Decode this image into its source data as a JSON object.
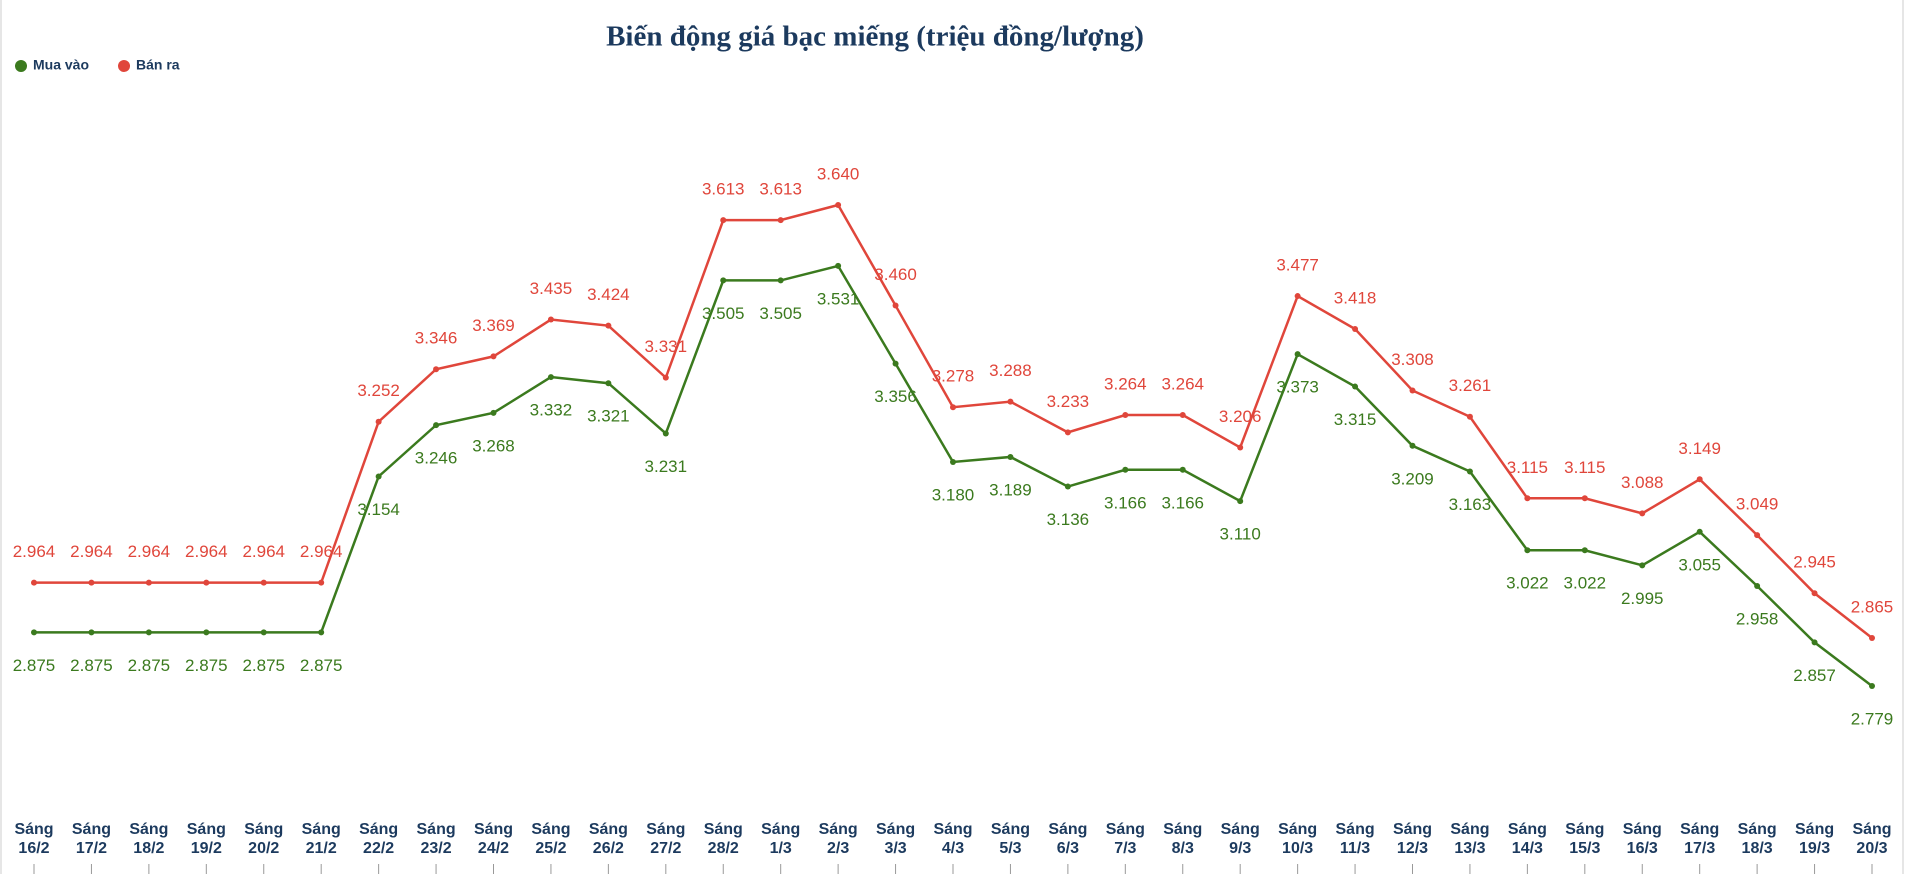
{
  "chart_data": {
    "type": "line",
    "title": "Biến động giá bạc miếng (triệu đồng/lượng)",
    "categories": [
      "Sáng 16/2",
      "Sáng 17/2",
      "Sáng 18/2",
      "Sáng 19/2",
      "Sáng 20/2",
      "Sáng 21/2",
      "Sáng 22/2",
      "Sáng 23/2",
      "Sáng 24/2",
      "Sáng 25/2",
      "Sáng 26/2",
      "Sáng 27/2",
      "Sáng 28/2",
      "Sáng 1/3",
      "Sáng 2/3",
      "Sáng 3/3",
      "Sáng 4/3",
      "Sáng 5/3",
      "Sáng 6/3",
      "Sáng 7/3",
      "Sáng 8/3",
      "Sáng 9/3",
      "Sáng 10/3",
      "Sáng 11/3",
      "Sáng 12/3",
      "Sáng 13/3",
      "Sáng 14/3",
      "Sáng 15/3",
      "Sáng 16/3",
      "Sáng 17/3",
      "Sáng 18/3",
      "Sáng 19/3",
      "Sáng 20/3"
    ],
    "series": [
      {
        "name": "Mua vào",
        "color": "#3b7a1e",
        "values": [
          2.875,
          2.875,
          2.875,
          2.875,
          2.875,
          2.875,
          3.154,
          3.246,
          3.268,
          3.332,
          3.321,
          3.231,
          3.505,
          3.505,
          3.531,
          3.356,
          3.18,
          3.189,
          3.136,
          3.166,
          3.166,
          3.11,
          3.373,
          3.315,
          3.209,
          3.163,
          3.022,
          3.022,
          2.995,
          3.055,
          2.958,
          2.857,
          2.779
        ],
        "value_labels": [
          "2.875",
          "2.875",
          "2.875",
          "2.875",
          "2.875",
          "2.875",
          "3.154",
          "3.246",
          "3.268",
          "3.332",
          "3.321",
          "3.231",
          "3.505",
          "3.505",
          "3.531",
          "3.356",
          "3.180",
          "3.189",
          "3.136",
          "3.166",
          "3.166",
          "3.110",
          "3.373",
          "3.315",
          "3.209",
          "3.163",
          "3.022",
          "3.022",
          "2.995",
          "3.055",
          "2.958",
          "2.857",
          "2.779"
        ]
      },
      {
        "name": "Bán ra",
        "color": "#e0463b",
        "values": [
          2.964,
          2.964,
          2.964,
          2.964,
          2.964,
          2.964,
          3.252,
          3.346,
          3.369,
          3.435,
          3.424,
          3.331,
          3.613,
          3.613,
          3.64,
          3.46,
          3.278,
          3.288,
          3.233,
          3.264,
          3.264,
          3.206,
          3.477,
          3.418,
          3.308,
          3.261,
          3.115,
          3.115,
          3.088,
          3.149,
          3.049,
          2.945,
          2.865
        ],
        "value_labels": [
          "2.964",
          "2.964",
          "2.964",
          "2.964",
          "2.964",
          "2.964",
          "3.252",
          "3.346",
          "3.369",
          "3.435",
          "3.424",
          "3.331",
          "3.613",
          "3.613",
          "3.640",
          "3.460",
          "3.278",
          "3.288",
          "3.233",
          "3.264",
          "3.264",
          "3.206",
          "3.477",
          "3.418",
          "3.308",
          "3.261",
          "3.115",
          "3.115",
          "3.088",
          "3.149",
          "3.049",
          "2.945",
          "2.865"
        ]
      }
    ]
  }
}
